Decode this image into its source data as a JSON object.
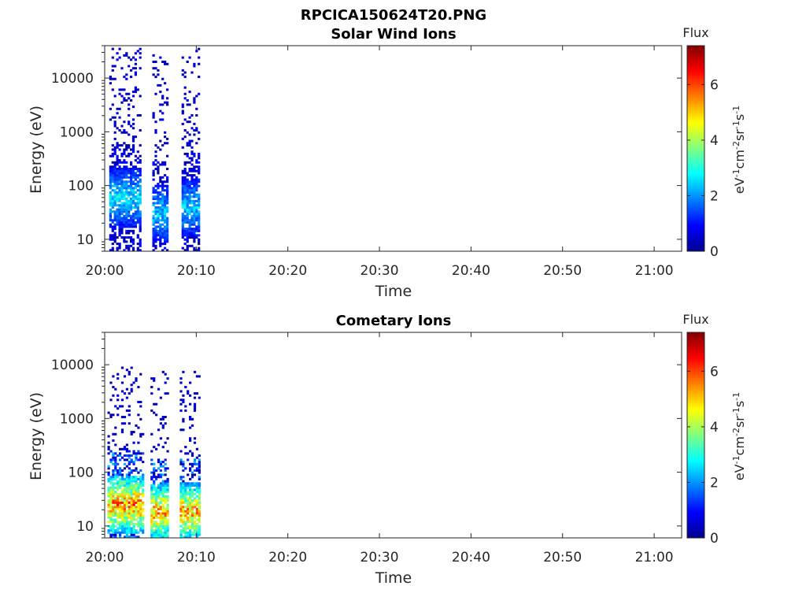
{
  "figure": {
    "title": "RPCICA150624T20.PNG"
  },
  "colormap": [
    "#00008f",
    "#0000ff",
    "#0080ff",
    "#00ffff",
    "#80ff80",
    "#ffff00",
    "#ff8000",
    "#ff0000",
    "#800000"
  ],
  "chart_data": [
    {
      "type": "heatmap",
      "title": "Solar Wind Ions",
      "xlabel": "Time",
      "ylabel": "Energy (eV)",
      "x_ticks": [
        "20:00",
        "20:10",
        "20:20",
        "20:30",
        "20:40",
        "20:50",
        "21:00"
      ],
      "x_range_minutes": [
        0,
        63
      ],
      "y_scale": "log",
      "y_ticks": [
        "10",
        "100",
        "1000",
        "10000"
      ],
      "y_range_eV": [
        6,
        40000
      ],
      "colorbar": {
        "title": "Flux",
        "label": "eV-1cm-2sr-1s-1",
        "range": [
          0,
          7.4
        ],
        "ticks": [
          "0",
          "2",
          "4",
          "6"
        ]
      },
      "bursts": [
        {
          "start_min": 0.5,
          "end_min": 3.8,
          "peak_energy_eV": 60,
          "max_energy_eV": 35000,
          "peak_flux": 3.2
        },
        {
          "start_min": 5.2,
          "end_min": 6.8,
          "peak_energy_eV": 30,
          "max_energy_eV": 30000,
          "peak_flux": 3.0
        },
        {
          "start_min": 8.4,
          "end_min": 10.2,
          "peak_energy_eV": 40,
          "max_energy_eV": 35000,
          "peak_flux": 3.0
        }
      ]
    },
    {
      "type": "heatmap",
      "title": "Cometary Ions",
      "xlabel": "Time",
      "ylabel": "Energy (eV)",
      "x_ticks": [
        "20:00",
        "20:10",
        "20:20",
        "20:30",
        "20:40",
        "20:50",
        "21:00"
      ],
      "x_range_minutes": [
        0,
        63
      ],
      "y_scale": "log",
      "y_ticks": [
        "10",
        "100",
        "1000",
        "10000"
      ],
      "y_range_eV": [
        6,
        40000
      ],
      "colorbar": {
        "title": "Flux",
        "label": "eV-1cm-2sr-1s-1",
        "range": [
          0,
          7.4
        ],
        "ticks": [
          "0",
          "2",
          "4",
          "6"
        ]
      },
      "bursts": [
        {
          "start_min": 0.3,
          "end_min": 4.2,
          "peak_energy_eV": 25,
          "max_energy_eV": 10000,
          "peak_flux": 6.8
        },
        {
          "start_min": 5.0,
          "end_min": 7.0,
          "peak_energy_eV": 18,
          "max_energy_eV": 8000,
          "peak_flux": 6.5
        },
        {
          "start_min": 8.2,
          "end_min": 10.3,
          "peak_energy_eV": 18,
          "max_energy_eV": 9000,
          "peak_flux": 6.5
        }
      ]
    }
  ]
}
